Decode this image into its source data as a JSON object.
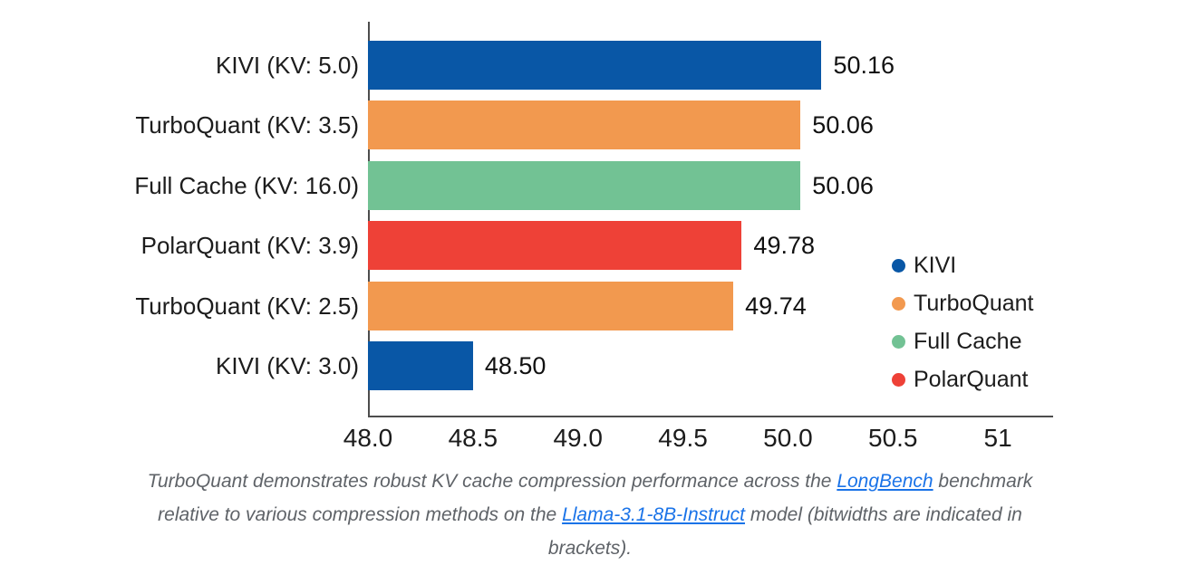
{
  "figure": {
    "background": "#ffffff"
  },
  "chart_data": {
    "type": "bar",
    "orientation": "horizontal",
    "title": "",
    "xlabel": "",
    "ylabel": "",
    "grid": false,
    "xlim": [
      48.0,
      51.26
    ],
    "x_ticks": [
      {
        "label": "48.0",
        "value": 48.0
      },
      {
        "label": "48.5",
        "value": 48.5
      },
      {
        "label": "49.0",
        "value": 49.0
      },
      {
        "label": "49.5",
        "value": 49.5
      },
      {
        "label": "50.0",
        "value": 50.0
      },
      {
        "label": "50.5",
        "value": 50.5
      },
      {
        "label": "51",
        "value": 51.0
      }
    ],
    "rows": [
      {
        "label": "KIVI (KV: 5.0)",
        "series": "KIVI",
        "value": 50.16,
        "value_label": "50.16"
      },
      {
        "label": "TurboQuant (KV: 3.5)",
        "series": "TurboQuant",
        "value": 50.06,
        "value_label": "50.06"
      },
      {
        "label": "Full Cache (KV: 16.0)",
        "series": "Full Cache",
        "value": 50.06,
        "value_label": "50.06"
      },
      {
        "label": "PolarQuant (KV: 3.9)",
        "series": "PolarQuant",
        "value": 49.78,
        "value_label": "49.78"
      },
      {
        "label": "TurboQuant (KV: 2.5)",
        "series": "TurboQuant",
        "value": 49.74,
        "value_label": "49.74"
      },
      {
        "label": "KIVI (KV: 3.0)",
        "series": "KIVI",
        "value": 48.5,
        "value_label": "48.50"
      }
    ],
    "series_colors": {
      "KIVI": "#0957A6",
      "TurboQuant": "#F2994F",
      "Full Cache": "#72C294",
      "PolarQuant": "#EE4137"
    },
    "legend": {
      "position": "inside-right",
      "items": [
        "KIVI",
        "TurboQuant",
        "Full Cache",
        "PolarQuant"
      ]
    }
  },
  "caption": {
    "line1_pre": "TurboQuant demonstrates robust KV cache compression performance across the ",
    "link1": "LongBench",
    "line1_post": " benchmark",
    "line2_pre": "relative to various compression methods on the ",
    "link2": "Llama-3.1-8B-Instruct",
    "line2_post": " model (bitwidths are indicated in",
    "line3": "brackets).",
    "text_color": "#5f6368",
    "link_color": "#1a73e8",
    "axis_line_color": "#4d4d4d"
  }
}
